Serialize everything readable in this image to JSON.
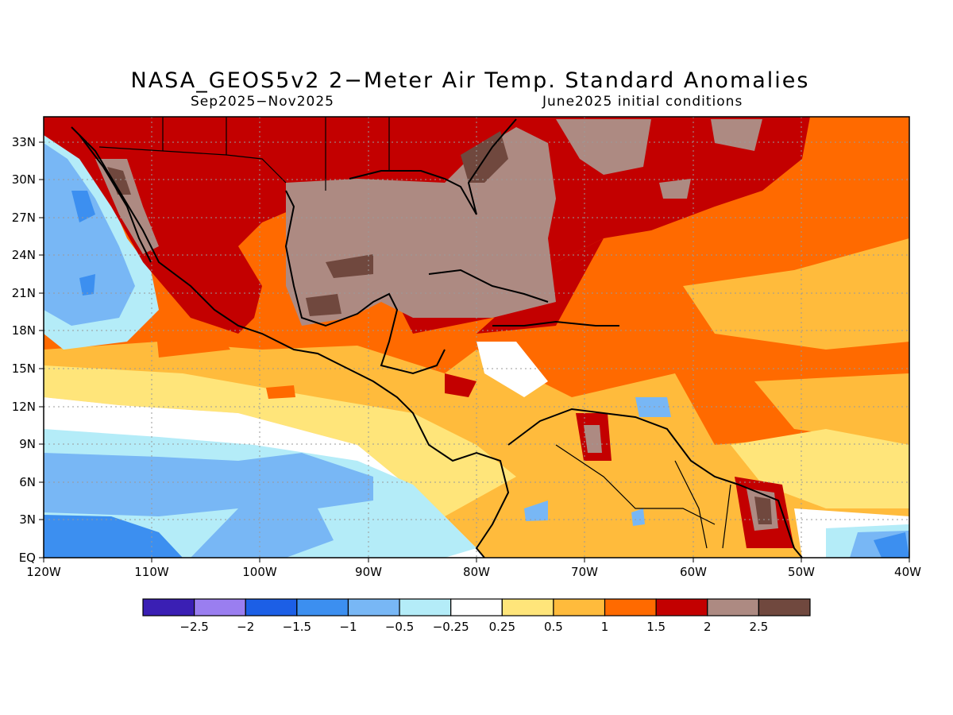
{
  "title": "NASA_GEOS5v2 2−Meter Air Temp. Standard Anomalies",
  "subtitle_left": "Sep2025−Nov2025",
  "subtitle_right": "June2025 initial conditions",
  "map": {
    "region": "Gulf of Mexico / Caribbean / Central America",
    "lon_range": [
      -120,
      -40
    ],
    "lat_range": [
      0,
      35
    ],
    "lon_ticks": [
      "120W",
      "110W",
      "100W",
      "90W",
      "80W",
      "70W",
      "60W",
      "50W",
      "40W"
    ],
    "lat_ticks": [
      "EQ",
      "3N",
      "6N",
      "9N",
      "12N",
      "15N",
      "18N",
      "21N",
      "24N",
      "27N",
      "30N",
      "33N"
    ],
    "gridlines": "dotted"
  },
  "colorbar": {
    "colors": [
      "#3a1fb4",
      "#9a7ef0",
      "#1c5fe6",
      "#3c8ff0",
      "#78b7f5",
      "#b4ecf8",
      "#ffffff",
      "#ffe57a",
      "#ffbb3c",
      "#ff6a00",
      "#c30000",
      "#ad8a82",
      "#70483e"
    ],
    "labels": [
      "−2.5",
      "−2",
      "−1.5",
      "−1",
      "−0.5",
      "−0.25",
      "0.25",
      "0.5",
      "1",
      "1.5",
      "2",
      "2.5"
    ]
  },
  "colors": {
    "land_outline": "#000000",
    "grid": "#9a9a9a"
  }
}
